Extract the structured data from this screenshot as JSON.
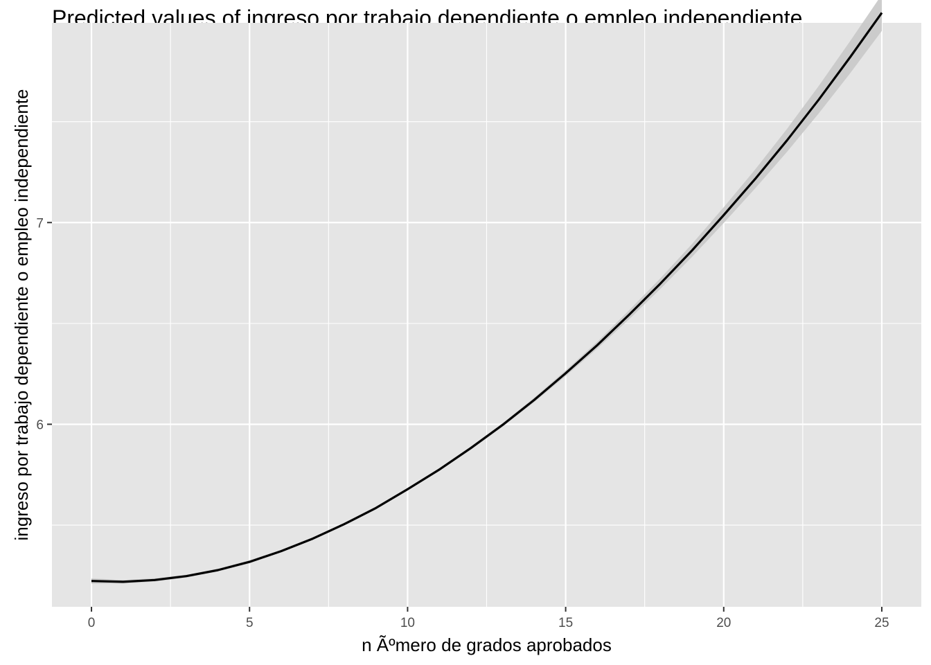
{
  "chart_data": {
    "type": "line",
    "title": "Predicted values of ingreso por trabajo dependiente o empleo independiente",
    "xlabel": "n Ãºmero de grados aprobados",
    "ylabel": "ingreso por trabajo dependiente o empleo independiente",
    "xlim": [
      -1.25,
      26.25
    ],
    "ylim": [
      5.095,
      7.99
    ],
    "x_ticks": [
      0,
      5,
      10,
      15,
      20,
      25
    ],
    "x_tick_labels": [
      "0",
      "5",
      "10",
      "15",
      "20",
      "25"
    ],
    "y_ticks": [
      6,
      7
    ],
    "y_tick_labels": [
      "6",
      "7"
    ],
    "grid": true,
    "legend": "none",
    "series": [
      {
        "x": [
          0,
          1,
          2,
          3,
          4,
          5,
          6,
          7,
          8,
          9,
          10,
          11,
          12,
          13,
          14,
          15,
          16,
          17,
          18,
          19,
          20,
          21,
          22,
          23,
          24,
          25
        ],
        "y": [
          5.223,
          5.219,
          5.228,
          5.247,
          5.277,
          5.318,
          5.371,
          5.433,
          5.505,
          5.585,
          5.678,
          5.775,
          5.882,
          5.996,
          6.12,
          6.253,
          6.392,
          6.542,
          6.698,
          6.862,
          7.037,
          7.217,
          7.407,
          7.608,
          7.82,
          8.04
        ],
        "ci_low": [
          5.21,
          5.21,
          5.22,
          5.24,
          5.27,
          5.31,
          5.365,
          5.427,
          5.499,
          5.579,
          5.672,
          5.768,
          5.874,
          5.987,
          6.109,
          6.239,
          6.375,
          6.52,
          6.672,
          6.83,
          6.998,
          7.17,
          7.35,
          7.54,
          7.74,
          7.95
        ],
        "ci_high": [
          5.236,
          5.228,
          5.236,
          5.254,
          5.284,
          5.326,
          5.377,
          5.439,
          5.511,
          5.591,
          5.684,
          5.782,
          5.89,
          6.005,
          6.131,
          6.267,
          6.409,
          6.564,
          6.724,
          6.894,
          7.076,
          7.264,
          7.464,
          7.676,
          7.9,
          8.13
        ]
      }
    ],
    "colors": {
      "panel": "#e5e5e5",
      "grid_major": "#ffffff",
      "line": "#000000",
      "ribbon": "#c8c8c8"
    }
  }
}
